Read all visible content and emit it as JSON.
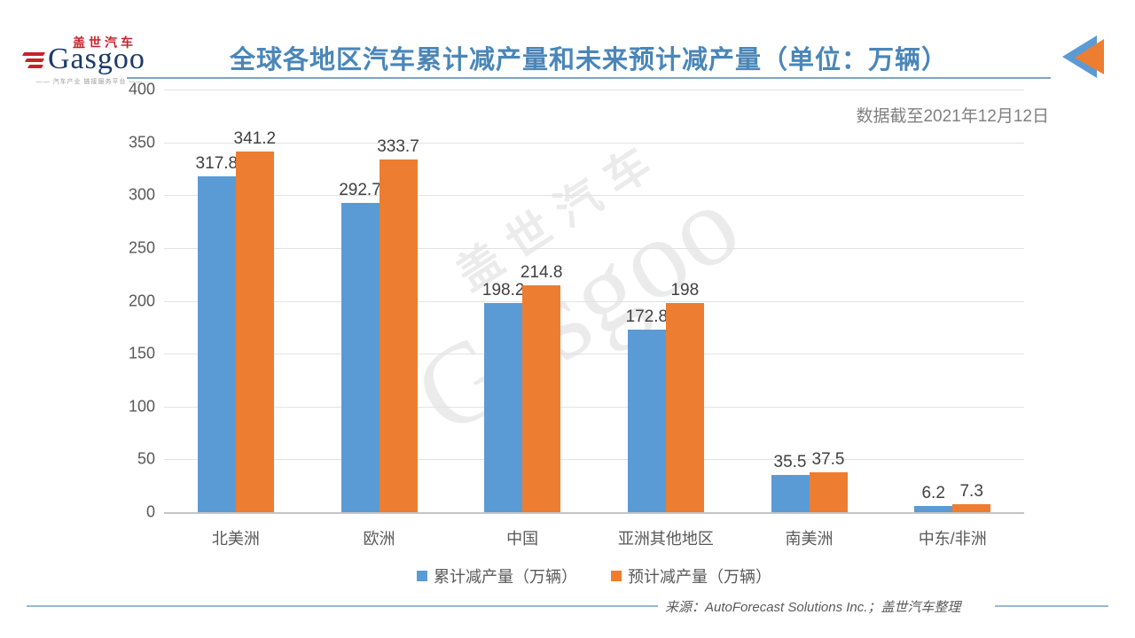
{
  "header": {
    "logo_cn": "盖世汽车",
    "logo_en": "Gasgoo",
    "logo_tagline": "—— 汽车产业 链接服务平台 ——",
    "title": "全球各地区汽车累计减产量和未来预计减产量（单位：万辆）",
    "note": "数据截至2021年12月12日"
  },
  "chart_data": {
    "type": "bar",
    "title": "全球各地区汽车累计减产量和未来预计减产量（单位：万辆）",
    "categories": [
      "北美洲",
      "欧洲",
      "中国",
      "亚洲其他地区",
      "南美洲",
      "中东/非洲"
    ],
    "series": [
      {
        "name": "累计减产量（万辆）",
        "color": "#5B9BD5",
        "values": [
          317.8,
          292.7,
          198.2,
          172.8,
          35.5,
          6.2
        ]
      },
      {
        "name": "预计减产量（万辆）",
        "color": "#ED7D31",
        "values": [
          341.2,
          333.7,
          214.8,
          198,
          37.5,
          7.3
        ]
      }
    ],
    "xlabel": "",
    "ylabel": "",
    "ylim": [
      0,
      400
    ],
    "ytick_interval": 50,
    "grid": true,
    "legend_position": "bottom"
  },
  "watermark": {
    "cn": "盖世汽车",
    "en": "Gasgoo"
  },
  "footer": {
    "source": "来源：AutoForecast Solutions Inc.；盖世汽车整理"
  },
  "colors": {
    "title": "#4a86b8",
    "bar_blue": "#5B9BD5",
    "bar_orange": "#ED7D31",
    "axis_text": "#595959",
    "rule_blue": "#9ab8d3"
  }
}
